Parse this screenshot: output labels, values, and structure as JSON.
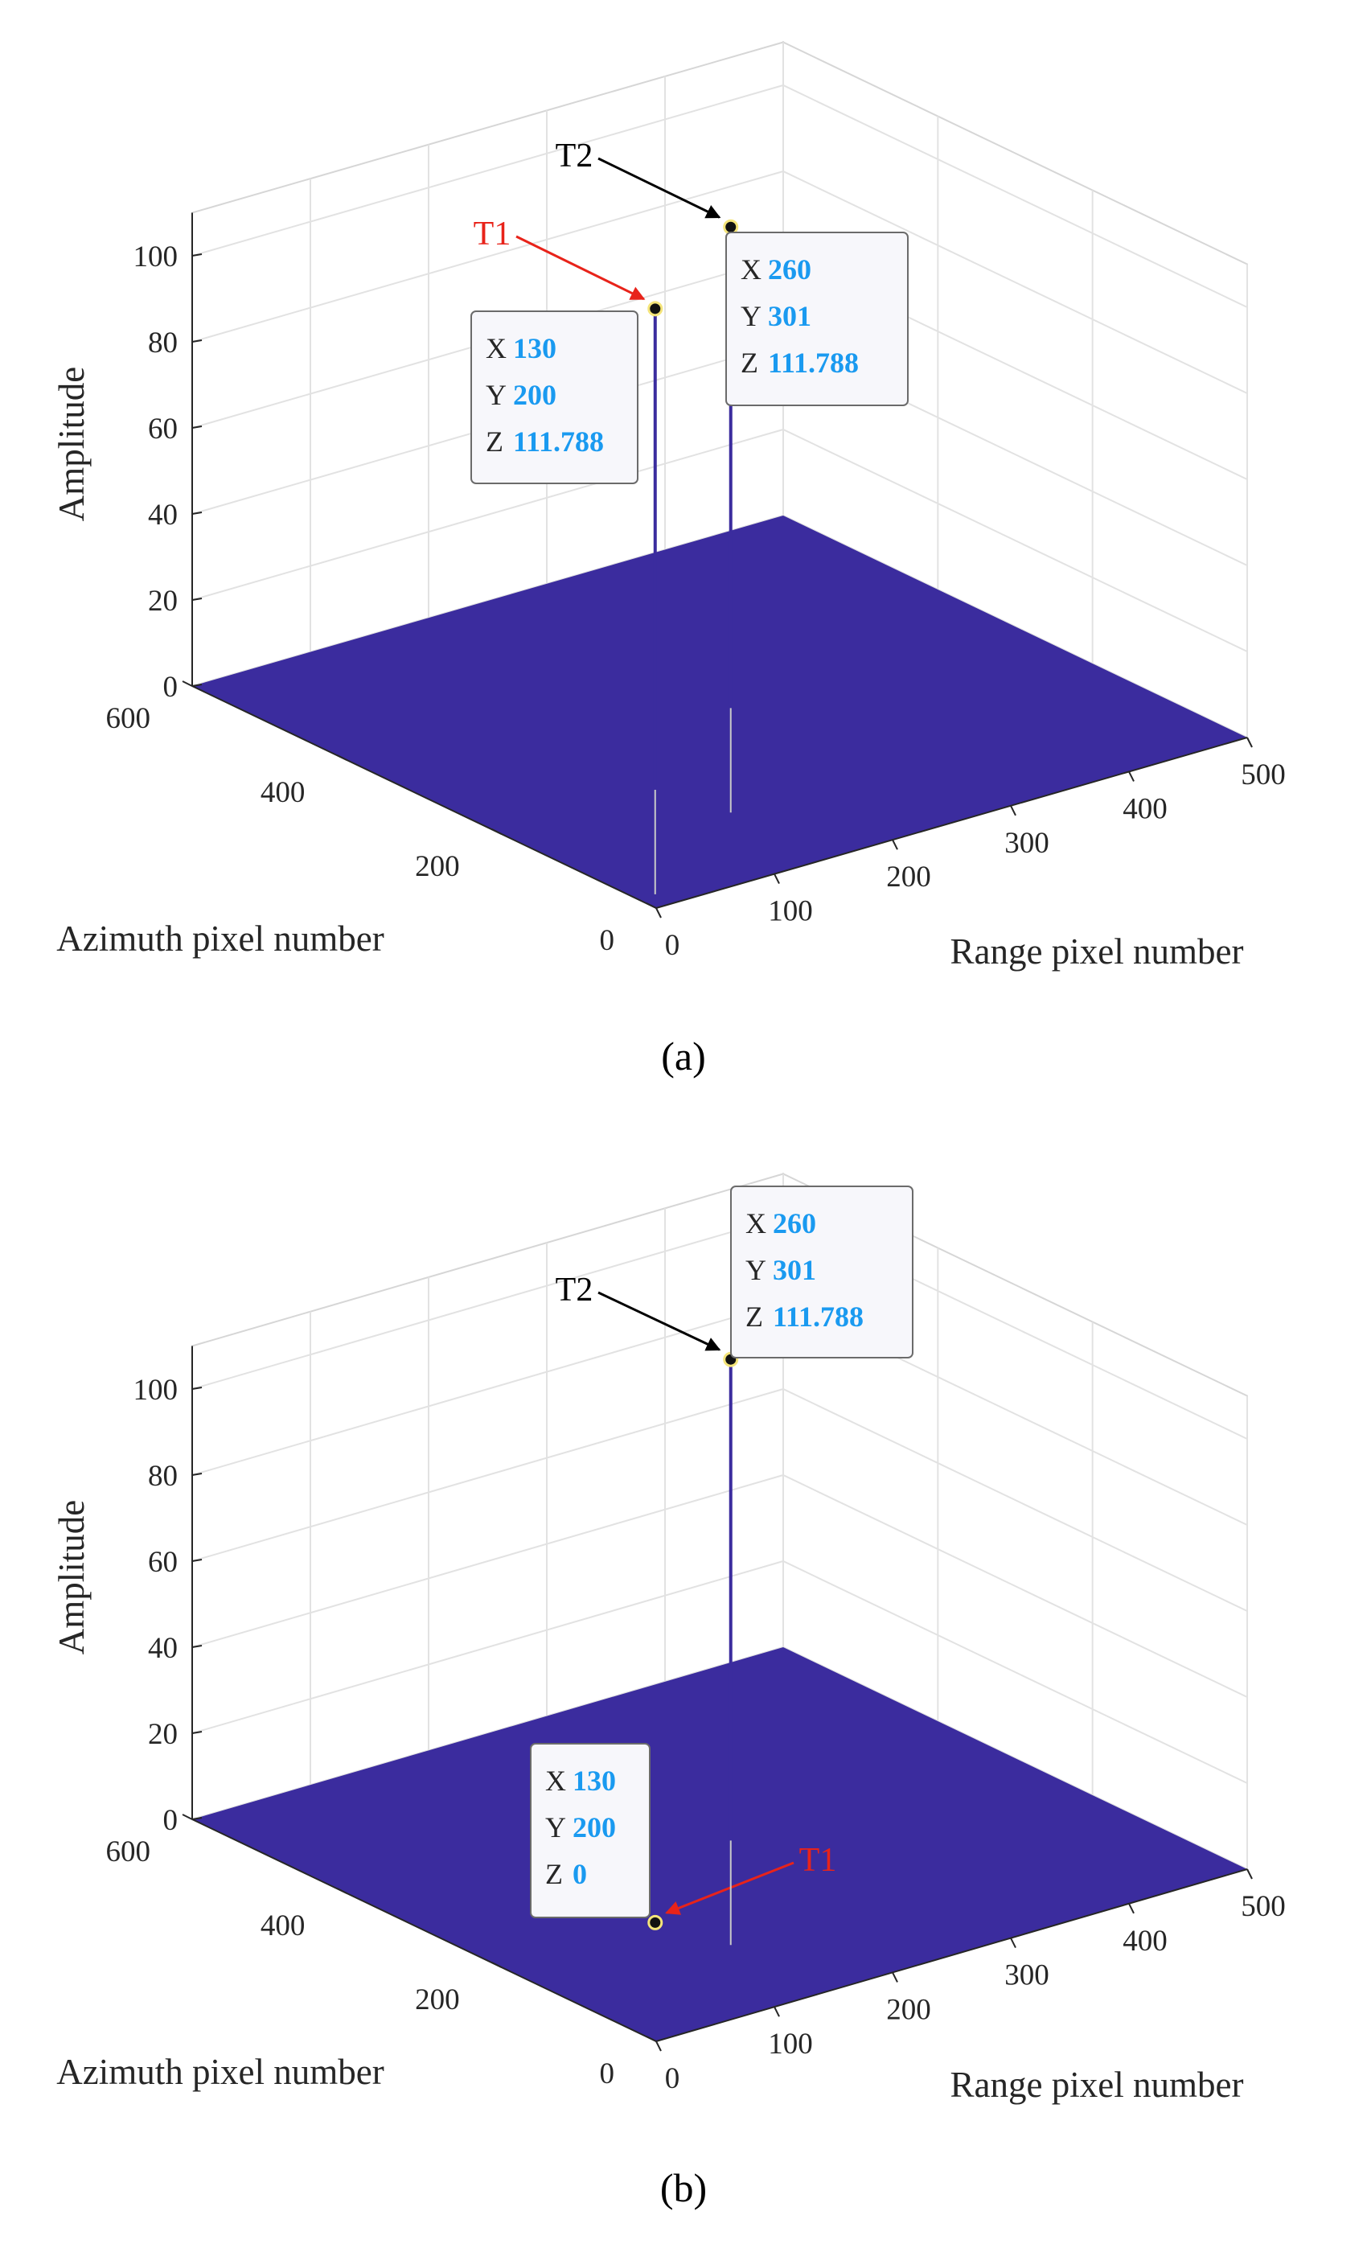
{
  "chart_data": [
    {
      "panel": "a",
      "type": "surface3d",
      "caption": "(a)",
      "xlabel": "Range pixel number",
      "ylabel": "Azimuth pixel number",
      "zlabel": "Amplitude",
      "xlim": [
        0,
        500
      ],
      "ylim": [
        0,
        600
      ],
      "zlim": [
        0,
        110
      ],
      "xticks": [
        0,
        100,
        200,
        300,
        400,
        500
      ],
      "yticks": [
        0,
        200,
        400,
        600
      ],
      "zticks": [
        0,
        20,
        40,
        60,
        80,
        100
      ],
      "grid": true,
      "surface_color": "#3b2c9e",
      "targets": [
        {
          "name": "T1",
          "x": 130,
          "y": 200,
          "z": 111.788,
          "label_color": "#e8231a",
          "tip": {
            "x": "130",
            "y": "200",
            "z": "111.788"
          }
        },
        {
          "name": "T2",
          "x": 260,
          "y": 301,
          "z": 111.788,
          "label_color": "#000000",
          "tip": {
            "x": "260",
            "y": "301",
            "z": "111.788"
          }
        }
      ]
    },
    {
      "panel": "b",
      "type": "surface3d",
      "caption": "(b)",
      "xlabel": "Range pixel number",
      "ylabel": "Azimuth pixel number",
      "zlabel": "Amplitude",
      "xlim": [
        0,
        500
      ],
      "ylim": [
        0,
        600
      ],
      "zlim": [
        0,
        110
      ],
      "xticks": [
        0,
        100,
        200,
        300,
        400,
        500
      ],
      "yticks": [
        0,
        200,
        400,
        600
      ],
      "zticks": [
        0,
        20,
        40,
        60,
        80,
        100
      ],
      "grid": true,
      "surface_color": "#3b2c9e",
      "targets": [
        {
          "name": "T1",
          "x": 130,
          "y": 200,
          "z": 0,
          "label_color": "#e8231a",
          "tip": {
            "x": "130",
            "y": "200",
            "z": "0"
          }
        },
        {
          "name": "T2",
          "x": 260,
          "y": 301,
          "z": 111.788,
          "label_color": "#000000",
          "tip": {
            "x": "260",
            "y": "301",
            "z": "111.788"
          }
        }
      ]
    }
  ],
  "datatip": {
    "key_x": "X",
    "key_y": "Y",
    "key_z": "Z",
    "value_color": "#1a9af0"
  }
}
